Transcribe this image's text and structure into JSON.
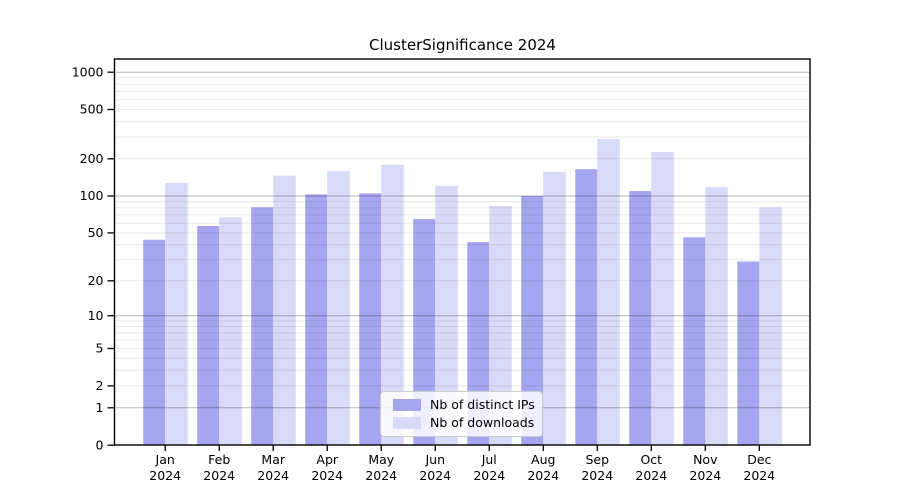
{
  "figure": {
    "background": "#ffffff"
  },
  "chart_data": {
    "type": "bar",
    "title": "ClusterSignificance 2024",
    "xlabel": "",
    "ylabel": "",
    "categories": [
      "Jan",
      "Feb",
      "Mar",
      "Apr",
      "May",
      "Jun",
      "Jul",
      "Aug",
      "Sep",
      "Oct",
      "Nov",
      "Dec"
    ],
    "xtick_year": "2024",
    "series": [
      {
        "name": "Nb of distinct IPs",
        "color": "#a5a5f0",
        "values": [
          44,
          57,
          81,
          103,
          105,
          65,
          42,
          100,
          165,
          110,
          46,
          29
        ]
      },
      {
        "name": "Nb of downloads",
        "color": "#d9d9f8",
        "values": [
          128,
          67,
          146,
          159,
          179,
          121,
          83,
          157,
          289,
          227,
          118,
          81
        ]
      }
    ],
    "yscale": "log1p",
    "ylim": [
      0,
      1000
    ],
    "yticks": [
      0,
      1,
      2,
      5,
      10,
      20,
      50,
      100,
      200,
      500,
      1000
    ],
    "ymajor_gridlines": [
      1,
      10,
      100,
      1000
    ],
    "grid": "on",
    "legend_position": "inside-bottom-center",
    "colors": {
      "axis": "#000000",
      "major_grid": "#b3b3b3",
      "minor_grid": "#ebebeb"
    }
  }
}
